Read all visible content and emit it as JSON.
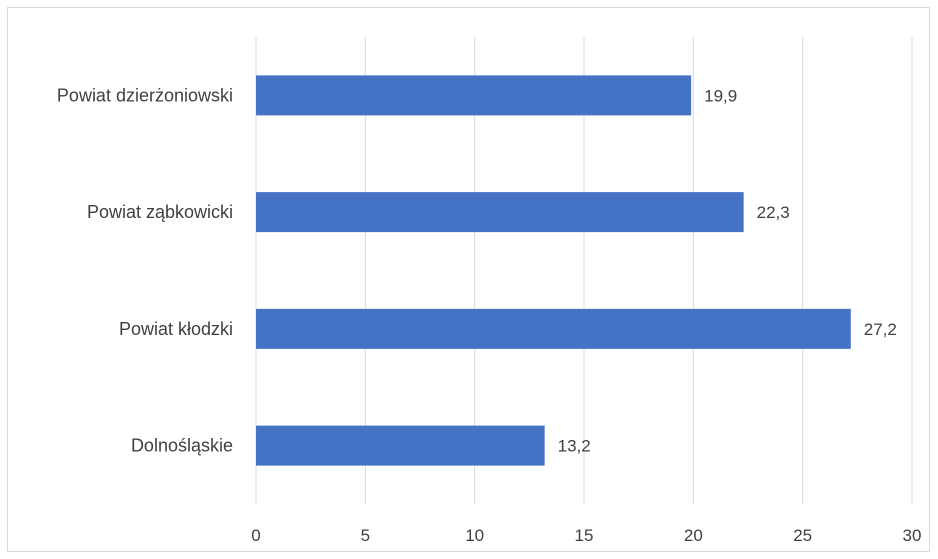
{
  "chart_data": {
    "type": "bar",
    "orientation": "horizontal",
    "categories": [
      "Powiat dzierżoniowski",
      "Powiat ząbkowicki",
      "Powiat kłodzki",
      "Dolnośląskie"
    ],
    "values": [
      19.9,
      22.3,
      27.2,
      13.2
    ],
    "value_labels": [
      "19,9",
      "22,3",
      "27,2",
      "13,2"
    ],
    "xlim": [
      0,
      30
    ],
    "x_ticks": [
      0,
      5,
      10,
      15,
      20,
      25,
      30
    ],
    "title": "",
    "xlabel": "",
    "ylabel": "",
    "grid": "vertical",
    "legend": "none",
    "bar_color": "#4472c4",
    "grid_color": "#d9d9d9"
  }
}
